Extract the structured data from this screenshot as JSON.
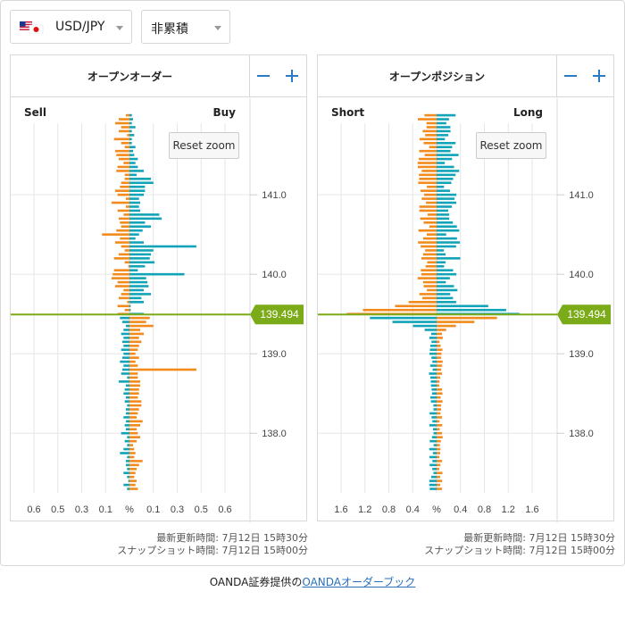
{
  "selectors": {
    "pair": "USD/JPY",
    "mode": "非累積"
  },
  "colors": {
    "buy": "#11a4b8",
    "sell": "#f28a1c",
    "price": "#7cab19",
    "grid": "#e6e6e6",
    "button": "#2b7bc4"
  },
  "current_price_label": "139.494",
  "reset_label": "Reset zoom",
  "timestamps": {
    "updated": "最新更新時間: 7月12日 15時30分",
    "snapshot": "スナップショット時間: 7月12日 15時00分"
  },
  "footer": {
    "prefix": "OANDA証券提供の",
    "link": "OANDAオーダーブック"
  },
  "chart_data": [
    {
      "type": "bar",
      "title": "オープンオーダー",
      "left_label": "Sell",
      "right_label": "Buy",
      "orientation": "horizontal-diverging",
      "x_ticks": [
        "0.6",
        "0.5",
        "0.3",
        "0.1",
        "%",
        "0.1",
        "0.3",
        "0.5",
        "0.6"
      ],
      "y_ticks": [
        "141.0",
        "140.0",
        "139.0",
        "138.0"
      ],
      "ylim": [
        137.25,
        141.9
      ],
      "xlim_percent": [
        -0.8,
        0.8
      ],
      "current_price": 139.494,
      "price_step": 0.05,
      "price_start": 137.3,
      "sell": [
        0.02,
        0.05,
        0.01,
        0.02,
        0.05,
        0.02,
        0.03,
        0.03,
        0.02,
        0.08,
        0.05,
        0.02,
        0.04,
        0.02,
        0.07,
        0.03,
        0.04,
        0.03,
        0.05,
        0.03,
        0.03,
        0.02,
        0.04,
        0.03,
        0.05,
        0.04,
        0.03,
        0.09,
        0.02,
        0.07,
        0.06,
        0.05,
        0.08,
        0.06,
        0.05,
        0.07,
        0.05,
        0.06,
        0.05,
        0.07,
        0.05,
        0.03,
        0.06,
        0.08,
        0.1,
        0.04,
        0.1,
        0.02,
        0.09,
        0.07,
        0.05,
        0.12,
        0.1,
        0.15,
        0.14,
        0.13,
        0.01,
        0.04,
        0.13,
        0.09,
        0.04,
        0.07,
        0.12,
        0.08,
        0.23,
        0.11,
        0.07,
        0.08,
        0.09,
        0.05,
        0.1,
        0.03,
        0.15,
        0.03,
        0.1,
        0.12,
        0.08,
        0.07,
        0.04,
        0.04,
        0.11,
        0.1,
        0.05,
        0.09,
        0.11,
        0.12,
        0.04,
        0.07,
        0.13,
        0.02,
        0.09,
        0.07,
        0.12,
        0.09,
        0.03
      ],
      "buy": [
        0.07,
        0.05,
        0.06,
        0.04,
        0.05,
        0.06,
        0.08,
        0.11,
        0.04,
        0.05,
        0.04,
        0.03,
        0.06,
        0.09,
        0.07,
        0.06,
        0.09,
        0.11,
        0.06,
        0.07,
        0.08,
        0.1,
        0.1,
        0.07,
        0.08,
        0.08,
        0.09,
        0.09,
        0.07,
        0.07,
        0.56,
        0.07,
        0.05,
        0.08,
        0.05,
        0.07,
        0.08,
        0.1,
        0.08,
        0.12,
        0.09,
        0.2,
        0.14,
        0.17,
        0.12,
        0.01,
        0.01,
        0.12,
        0.1,
        0.18,
        0.12,
        0.16,
        0.15,
        0.14,
        0.46,
        0.07,
        0.13,
        0.21,
        0.17,
        0.18,
        0.2,
        0.56,
        0.12,
        0.05,
        0.08,
        0.11,
        0.18,
        0.13,
        0.27,
        0.25,
        0.09,
        0.08,
        0.09,
        0.08,
        0.12,
        0.13,
        0.13,
        0.2,
        0.18,
        0.06,
        0.12,
        0.07,
        0.05,
        0.07,
        0.04,
        0.03,
        0.05,
        0.02,
        0.02,
        0.04,
        0.02,
        0.05,
        0.02,
        0.03,
        0.02
      ],
      "bar_colors_note": "sell side mostly orange above price, teal below; buy side teal above price, orange below"
    },
    {
      "type": "bar",
      "title": "オープンポジション",
      "left_label": "Short",
      "right_label": "Long",
      "orientation": "horizontal-diverging",
      "x_ticks": [
        "1.6",
        "1.2",
        "0.8",
        "0.4",
        "%",
        "0.4",
        "0.8",
        "1.2",
        "1.6"
      ],
      "y_ticks": [
        "141.0",
        "140.0",
        "139.0",
        "138.0"
      ],
      "ylim": [
        137.25,
        141.9
      ],
      "xlim_percent": [
        -2.0,
        2.0
      ],
      "current_price": 139.494
    }
  ]
}
